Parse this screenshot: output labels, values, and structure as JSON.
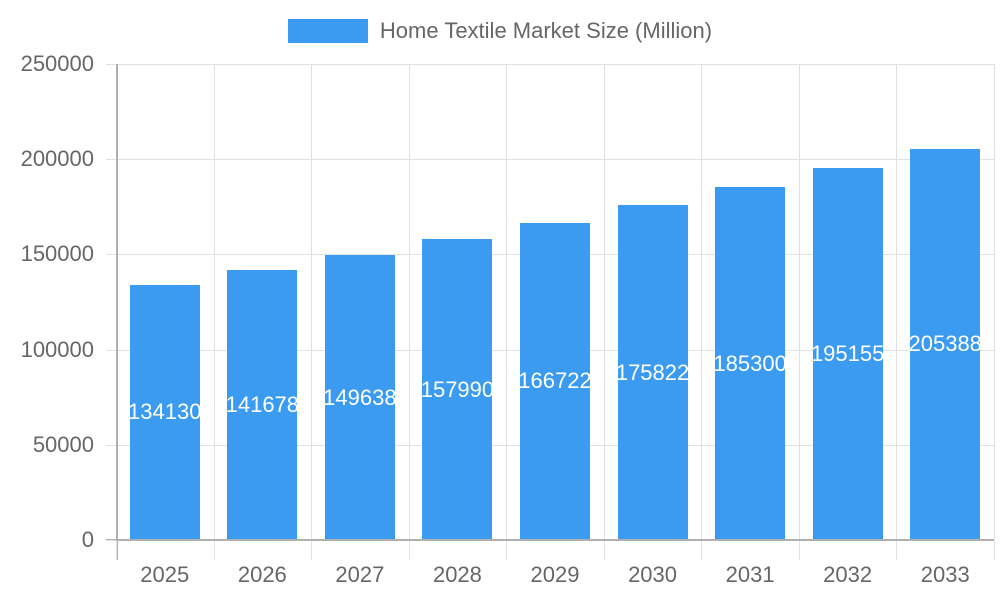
{
  "chart_data": {
    "type": "bar",
    "title": "",
    "categories": [
      "2025",
      "2026",
      "2027",
      "2028",
      "2029",
      "2030",
      "2031",
      "2032",
      "2033"
    ],
    "series": [
      {
        "name": "Home Textile Market Size (Million)",
        "color": "#3a9bf0",
        "values": [
          134130,
          141678,
          149638,
          157990,
          166722,
          175822,
          185300,
          195155,
          205388
        ]
      }
    ],
    "xlabel": "",
    "ylabel": "",
    "ylim": [
      0,
      250000
    ],
    "yticks": [
      0,
      50000,
      100000,
      150000,
      200000,
      250000
    ],
    "grid": true,
    "legend_position": "top",
    "data_labels": true
  },
  "legend": {
    "label": "Home Textile Market Size (Million)",
    "color": "#3a9bf0"
  }
}
